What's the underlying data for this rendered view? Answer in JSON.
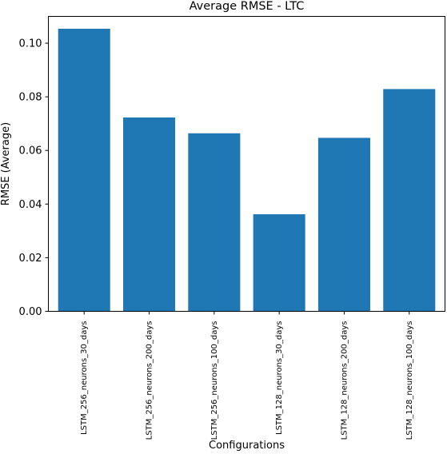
{
  "chart_data": {
    "type": "bar",
    "title": "Average RMSE - LTC",
    "xlabel": "Configurations",
    "ylabel": "RMSE (Average)",
    "categories": [
      "LSTM_256_neurons_30_days",
      "LSTM_256_neurons_200_days",
      "LSTM_256_neurons_100_days",
      "LSTM_128_neurons_30_days",
      "LSTM_128_neurons_200_days",
      "LSTM_128_neurons_100_days"
    ],
    "values": [
      0.1054,
      0.0723,
      0.0664,
      0.0362,
      0.0647,
      0.0829
    ],
    "ylim": [
      0,
      0.11
    ],
    "yticks": [
      0.0,
      0.02,
      0.04,
      0.06,
      0.08,
      0.1
    ],
    "ytick_labels": [
      "0.00",
      "0.02",
      "0.04",
      "0.06",
      "0.08",
      "0.10"
    ],
    "bar_color": "#1f77b4",
    "grid": false,
    "legend": "none"
  }
}
